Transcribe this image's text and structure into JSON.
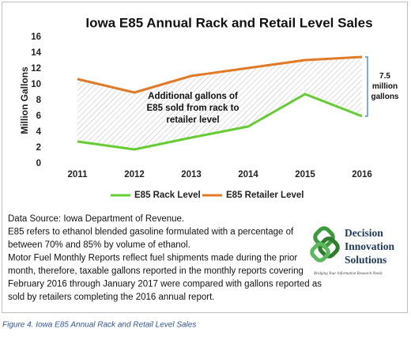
{
  "chart_data": {
    "type": "line",
    "title": "Iowa E85 Annual Rack and Retail Level Sales",
    "y_label": "Million Gallons",
    "categories": [
      "2011",
      "2012",
      "2013",
      "2014",
      "2015",
      "2016"
    ],
    "series": [
      {
        "name": "E85 Rack Level",
        "color": "#66cc33",
        "values": [
          2.8,
          1.8,
          3.3,
          4.7,
          8.8,
          6.0
        ]
      },
      {
        "name": "E85 Retailer Level",
        "color": "#e07a26",
        "values": [
          10.7,
          9.0,
          11.1,
          12.1,
          13.1,
          13.5
        ]
      }
    ],
    "ylim": [
      0,
      16
    ],
    "yticks": [
      0,
      2,
      4,
      6,
      8,
      10,
      12,
      14,
      16
    ],
    "grid": false,
    "annotation": [
      "Additional gallons of",
      "E85 sold from rack to",
      "retailer level"
    ],
    "gap_label": [
      "7.5",
      "million",
      "gallons"
    ]
  },
  "notes": [
    "Data Source: Iowa Department of Revenue.",
    "E85 refers to ethanol blended gasoline formulated with a percentage of",
    "between 70% and 85% by volume of ethanol.",
    "Motor Fuel Monthly Reports reflect fuel shipments made during the prior",
    "month, therefore, taxable gallons reported in the monthly reports covering",
    "February 2016 through January 2017 were compared with gallons reported as",
    "sold by retailers completing the 2016 annual report."
  ],
  "logo": {
    "lines": [
      "Decision",
      "Innovation",
      "Solutions"
    ],
    "tagline": "Bridging Your Information Research Needs"
  },
  "caption": "Figure 4. Iowa E85 Annual Rack and Retail Level Sales"
}
